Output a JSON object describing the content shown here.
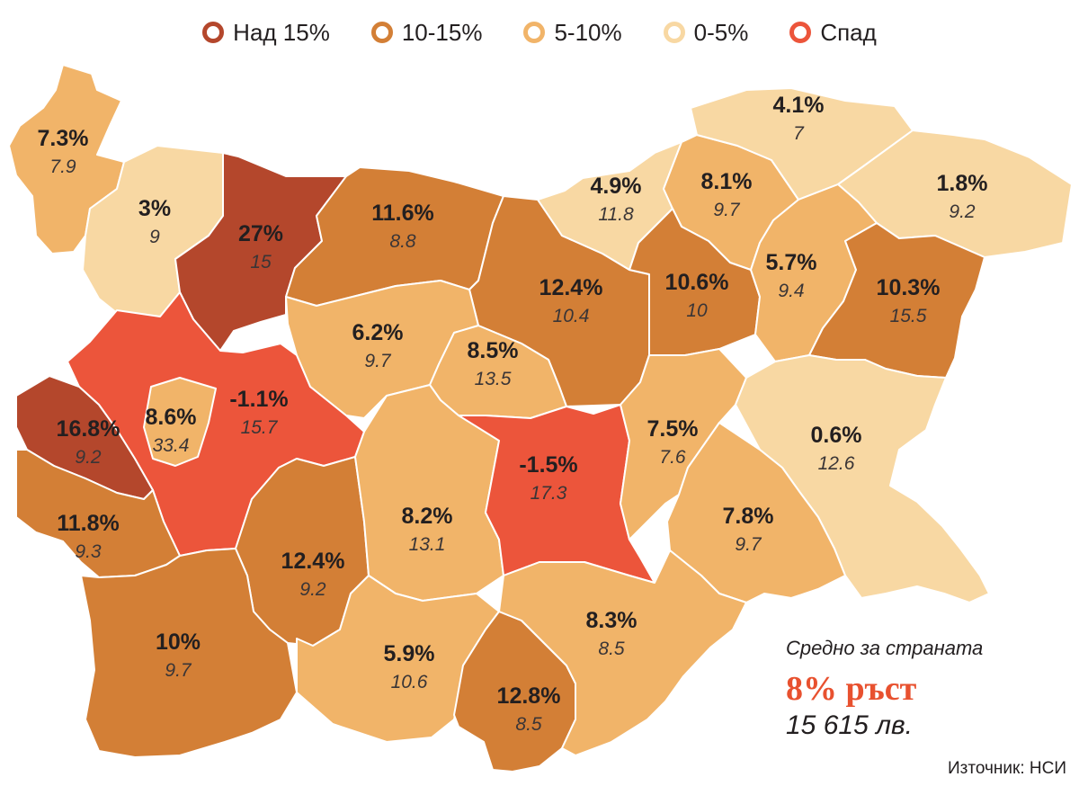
{
  "colors": {
    "over15": "#b4472c",
    "c10to15": "#d37f36",
    "c5to10": "#f1b469",
    "c0to5": "#f8d8a3",
    "decline": "#ec553b"
  },
  "legend": [
    {
      "label": "Над 15%",
      "color": "#b4472c"
    },
    {
      "label": "10-15%",
      "color": "#d37f36"
    },
    {
      "label": "5-10%",
      "color": "#f1b469"
    },
    {
      "label": "0-5%",
      "color": "#f8d8a3"
    },
    {
      "label": "Спад",
      "color": "#ec553b"
    }
  ],
  "regions": [
    {
      "id": "vidin",
      "change": "7.3%",
      "value": "7.9",
      "category": "5-10%"
    },
    {
      "id": "montana",
      "change": "3%",
      "value": "9",
      "category": "0-5%"
    },
    {
      "id": "vratsa",
      "change": "27%",
      "value": "15",
      "category": "Над 15%"
    },
    {
      "id": "pleven",
      "change": "11.6%",
      "value": "8.8",
      "category": "10-15%"
    },
    {
      "id": "veliko-tarnovo",
      "change": "12.4%",
      "value": "10.4",
      "category": "10-15%"
    },
    {
      "id": "ruse",
      "change": "4.9%",
      "value": "11.8",
      "category": "0-5%"
    },
    {
      "id": "razgrad",
      "change": "8.1%",
      "value": "9.7",
      "category": "5-10%"
    },
    {
      "id": "silistra",
      "change": "4.1%",
      "value": "7",
      "category": "0-5%"
    },
    {
      "id": "dobrich",
      "change": "1.8%",
      "value": "9.2",
      "category": "0-5%"
    },
    {
      "id": "targovishte",
      "change": "10.6%",
      "value": "10",
      "category": "10-15%"
    },
    {
      "id": "shumen",
      "change": "5.7%",
      "value": "9.4",
      "category": "5-10%"
    },
    {
      "id": "varna",
      "change": "10.3%",
      "value": "15.5",
      "category": "10-15%"
    },
    {
      "id": "lovech",
      "change": "6.2%",
      "value": "9.7",
      "category": "5-10%"
    },
    {
      "id": "gabrovo",
      "change": "8.5%",
      "value": "13.5",
      "category": "5-10%"
    },
    {
      "id": "sofia-oblast",
      "change": "-1.1%",
      "value": "15.7",
      "category": "Спад"
    },
    {
      "id": "sofia-city",
      "change": "8.6%",
      "value": "33.4",
      "category": "5-10%"
    },
    {
      "id": "pernik",
      "change": "16.8%",
      "value": "9.2",
      "category": "Над 15%"
    },
    {
      "id": "kyustendil",
      "change": "11.8%",
      "value": "9.3",
      "category": "10-15%"
    },
    {
      "id": "pazardzhik",
      "change": "12.4%",
      "value": "9.2",
      "category": "10-15%"
    },
    {
      "id": "plovdiv",
      "change": "8.2%",
      "value": "13.1",
      "category": "5-10%"
    },
    {
      "id": "stara-zagora",
      "change": "-1.5%",
      "value": "17.3",
      "category": "Спад"
    },
    {
      "id": "sliven",
      "change": "7.5%",
      "value": "7.6",
      "category": "5-10%"
    },
    {
      "id": "burgas",
      "change": "0.6%",
      "value": "12.6",
      "category": "0-5%"
    },
    {
      "id": "yambol",
      "change": "7.8%",
      "value": "9.7",
      "category": "5-10%"
    },
    {
      "id": "blagoevgrad",
      "change": "10%",
      "value": "9.7",
      "category": "10-15%"
    },
    {
      "id": "smolyan",
      "change": "5.9%",
      "value": "10.6",
      "category": "5-10%"
    },
    {
      "id": "kardzhali",
      "change": "12.8%",
      "value": "8.5",
      "category": "10-15%"
    },
    {
      "id": "haskovo",
      "change": "8.3%",
      "value": "8.5",
      "category": "5-10%"
    }
  ],
  "summary": {
    "label": "Средно за страната",
    "growth": "8% ръст",
    "salary": "15 615 лв."
  },
  "source": "Източник: НСИ"
}
